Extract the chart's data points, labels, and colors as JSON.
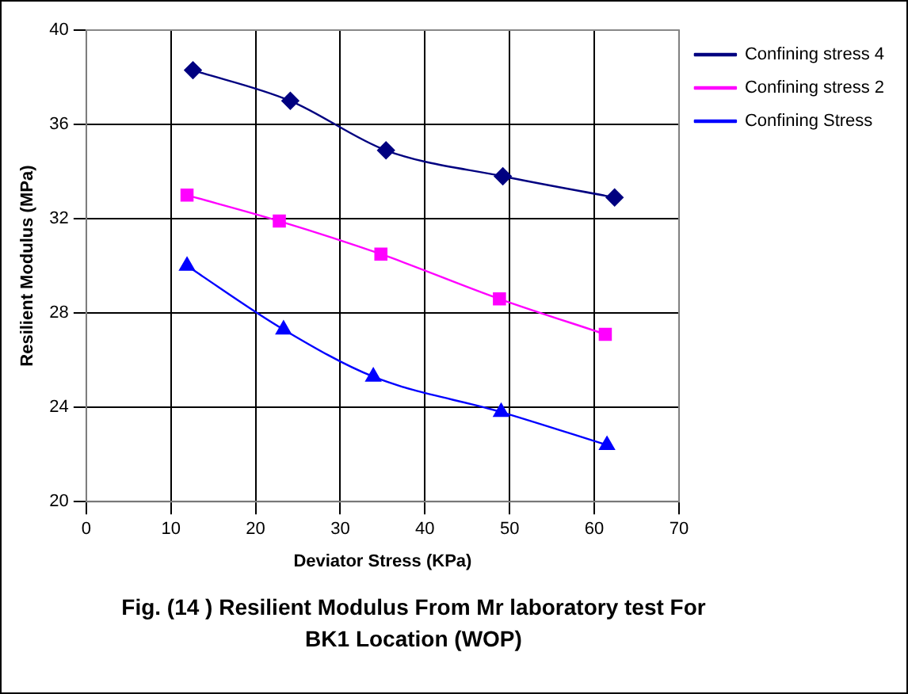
{
  "chart_data": {
    "type": "line",
    "title": "Fig. (14 )  Resilient Modulus From Mr laboratory test For  BK1 Location (WOP)",
    "xlabel": "Deviator Stress (KPa)",
    "ylabel": "Resilient Modulus (MPa)",
    "xlim": [
      0,
      70
    ],
    "xticks": [
      0,
      10,
      20,
      30,
      40,
      50,
      60,
      70
    ],
    "ylim": [
      20,
      40
    ],
    "yticks": [
      20,
      24,
      28,
      32,
      36,
      40
    ],
    "grid": true,
    "legend": "right",
    "line_style": "solid",
    "series": [
      {
        "name": "Confining stress 4",
        "color": "#000080",
        "marker": "diamond",
        "x": [
          12.6,
          24.1,
          35.4,
          49.2,
          62.4
        ],
        "values": [
          38.3,
          37.0,
          34.9,
          33.8,
          32.9
        ]
      },
      {
        "name": "Confining stress 2",
        "color": "#ff00ff",
        "marker": "square",
        "x": [
          11.9,
          22.8,
          34.8,
          48.8,
          61.3
        ],
        "values": [
          33.0,
          31.9,
          30.5,
          28.6,
          27.1
        ]
      },
      {
        "name": "Confining Stress",
        "color": "#0000ff",
        "marker": "triangle",
        "x": [
          11.9,
          23.3,
          33.9,
          49.0,
          61.5
        ],
        "values": [
          30.0,
          27.3,
          25.3,
          23.8,
          22.4
        ]
      }
    ]
  }
}
